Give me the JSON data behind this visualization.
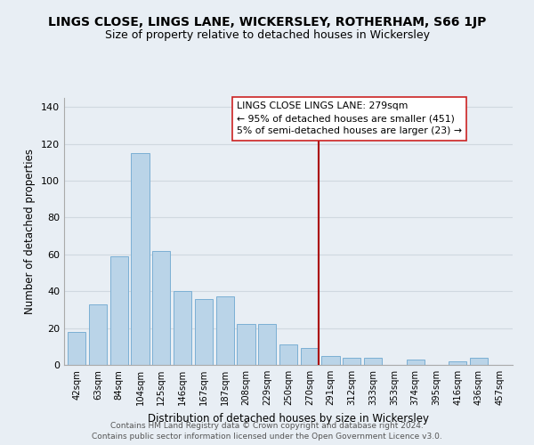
{
  "title": "LINGS CLOSE, LINGS LANE, WICKERSLEY, ROTHERHAM, S66 1JP",
  "subtitle": "Size of property relative to detached houses in Wickersley",
  "xlabel": "Distribution of detached houses by size in Wickersley",
  "ylabel": "Number of detached properties",
  "categories": [
    "42sqm",
    "63sqm",
    "84sqm",
    "104sqm",
    "125sqm",
    "146sqm",
    "167sqm",
    "187sqm",
    "208sqm",
    "229sqm",
    "250sqm",
    "270sqm",
    "291sqm",
    "312sqm",
    "333sqm",
    "353sqm",
    "374sqm",
    "395sqm",
    "416sqm",
    "436sqm",
    "457sqm"
  ],
  "values": [
    18,
    33,
    59,
    115,
    62,
    40,
    36,
    37,
    22,
    22,
    11,
    9,
    5,
    4,
    4,
    0,
    3,
    0,
    2,
    4,
    0
  ],
  "bar_color": "#bad4e8",
  "bar_edge_color": "#7bafd4",
  "ylim": [
    0,
    145
  ],
  "yticks": [
    0,
    20,
    40,
    60,
    80,
    100,
    120,
    140
  ],
  "background_color": "#e8eef4",
  "plot_bg_color": "#e8eef4",
  "grid_color": "#d0d8e0",
  "annotation_title": "LINGS CLOSE LINGS LANE: 279sqm",
  "annotation_line1": "← 95% of detached houses are smaller (451)",
  "annotation_line2": "5% of semi-detached houses are larger (23) →",
  "ref_line_color": "#aa0000",
  "footer_line1": "Contains HM Land Registry data © Crown copyright and database right 2024.",
  "footer_line2": "Contains public sector information licensed under the Open Government Licence v3.0."
}
